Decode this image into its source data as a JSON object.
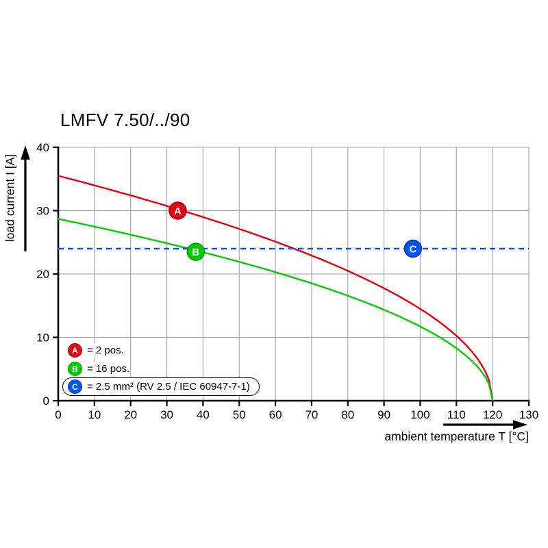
{
  "page": {
    "background": "#ffffff"
  },
  "chart_data": {
    "type": "line",
    "title": "LMFV 7.50/../90",
    "xlabel": "ambient temperature T [°C]",
    "ylabel": "load current I [A]",
    "xlim": [
      0,
      130
    ],
    "ylim": [
      0,
      40
    ],
    "x_ticks": [
      0,
      10,
      20,
      30,
      40,
      50,
      60,
      70,
      80,
      90,
      100,
      110,
      120,
      130
    ],
    "y_ticks": [
      0,
      10,
      20,
      30,
      40
    ],
    "grid": true,
    "legend_position": "lower-left",
    "colors": {
      "axis": "#000000",
      "grid": "#a3a3a3",
      "background": "#ffffff"
    },
    "series": [
      {
        "id": "a",
        "name": "A = 2 pos.",
        "color": "#e2000f",
        "style": "solid",
        "model": "sqrt",
        "x": [
          0,
          10,
          20,
          30,
          40,
          50,
          60,
          70,
          80,
          90,
          100,
          110,
          120
        ],
        "y": [
          35.5,
          34.0,
          32.4,
          30.7,
          29.0,
          27.1,
          25.1,
          22.9,
          20.5,
          17.8,
          14.5,
          10.2,
          0
        ]
      },
      {
        "id": "b",
        "name": "B = 16 pos.",
        "color": "#00cc00",
        "style": "solid",
        "model": "sqrt",
        "x": [
          0,
          10,
          20,
          30,
          40,
          50,
          60,
          70,
          80,
          90,
          100,
          110,
          120
        ],
        "y": [
          28.7,
          27.5,
          26.2,
          24.9,
          23.4,
          21.9,
          20.3,
          18.5,
          16.6,
          14.4,
          11.7,
          8.3,
          0
        ]
      },
      {
        "id": "c",
        "name": "C = 2.5 mm² (RV 2.5 / IEC 60947-7-1)",
        "color": "#0055ee",
        "style": "dashed",
        "model": "points",
        "x": [
          0,
          130
        ],
        "y": [
          24,
          24
        ]
      }
    ],
    "markers": [
      {
        "label": "A",
        "x": 33,
        "y": 30,
        "color": "#e2000f",
        "edge": "#a8000b"
      },
      {
        "label": "B",
        "x": 38,
        "y": 23.5,
        "color": "#00cc00",
        "edge": "#009a00"
      },
      {
        "label": "C",
        "x": 98,
        "y": 24,
        "color": "#0055ee",
        "edge": "#0039ad"
      }
    ]
  },
  "legend": {
    "items": [
      {
        "letter": "A",
        "text": "= 2 pos.",
        "color": "#e2000f",
        "edge": "#a8000b",
        "boxed": false
      },
      {
        "letter": "B",
        "text": "= 16 pos.",
        "color": "#00cc00",
        "edge": "#009a00",
        "boxed": false
      },
      {
        "letter": "C",
        "text": "= 2.5 mm² (RV 2.5 / IEC 60947-7-1)",
        "color": "#0055ee",
        "edge": "#0039ad",
        "boxed": true
      }
    ]
  }
}
